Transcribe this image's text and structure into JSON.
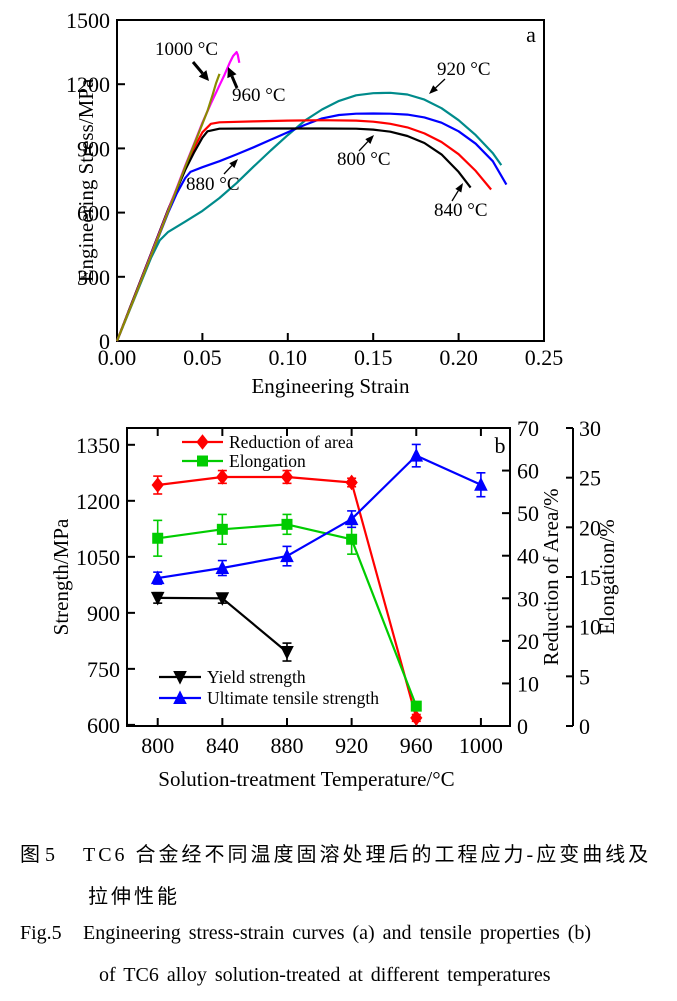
{
  "chart_data": [
    {
      "id": "a",
      "panel_label": "a",
      "type": "line",
      "title": "",
      "xlabel": "Engineering Strain",
      "ylabel": "Engineering Stress/MPa",
      "xlim": [
        0,
        0.25
      ],
      "ylim": [
        0,
        1500
      ],
      "xticks": [
        "0.00",
        "0.05",
        "0.10",
        "0.15",
        "0.20",
        "0.25"
      ],
      "yticks": [
        "0",
        "300",
        "600",
        "900",
        "1200",
        "1500"
      ],
      "grid": false,
      "frame_color": "#000000",
      "series": [
        {
          "name": "920 °C",
          "color": "#008b8b",
          "points": [
            [
              0,
              0
            ],
            [
              0.01,
              195
            ],
            [
              0.02,
              390
            ],
            [
              0.025,
              470
            ],
            [
              0.03,
              510
            ],
            [
              0.04,
              558
            ],
            [
              0.05,
              608
            ],
            [
              0.06,
              668
            ],
            [
              0.07,
              738
            ],
            [
              0.08,
              815
            ],
            [
              0.09,
              890
            ],
            [
              0.1,
              962
            ],
            [
              0.11,
              1030
            ],
            [
              0.12,
              1082
            ],
            [
              0.13,
              1122
            ],
            [
              0.14,
              1148
            ],
            [
              0.15,
              1158
            ],
            [
              0.16,
              1160
            ],
            [
              0.17,
              1152
            ],
            [
              0.18,
              1128
            ],
            [
              0.19,
              1088
            ],
            [
              0.2,
              1032
            ],
            [
              0.21,
              962
            ],
            [
              0.22,
              878
            ],
            [
              0.225,
              822
            ]
          ]
        },
        {
          "name": "880 °C",
          "color": "#0000ff",
          "points": [
            [
              0,
              0
            ],
            [
              0.01,
              200
            ],
            [
              0.02,
              400
            ],
            [
              0.03,
              600
            ],
            [
              0.035,
              690
            ],
            [
              0.04,
              762
            ],
            [
              0.043,
              790
            ],
            [
              0.05,
              812
            ],
            [
              0.06,
              840
            ],
            [
              0.07,
              872
            ],
            [
              0.08,
              905
            ],
            [
              0.09,
              940
            ],
            [
              0.1,
              975
            ],
            [
              0.11,
              1010
            ],
            [
              0.12,
              1040
            ],
            [
              0.13,
              1056
            ],
            [
              0.14,
              1062
            ],
            [
              0.15,
              1063
            ],
            [
              0.16,
              1062
            ],
            [
              0.17,
              1058
            ],
            [
              0.18,
              1045
            ],
            [
              0.19,
              1020
            ],
            [
              0.2,
              980
            ],
            [
              0.21,
              922
            ],
            [
              0.22,
              840
            ],
            [
              0.228,
              731
            ]
          ]
        },
        {
          "name": "840 °C",
          "color": "#ff0000",
          "points": [
            [
              0,
              0
            ],
            [
              0.01,
              205
            ],
            [
              0.02,
              410
            ],
            [
              0.03,
              615
            ],
            [
              0.04,
              810
            ],
            [
              0.045,
              900
            ],
            [
              0.05,
              975
            ],
            [
              0.055,
              1015
            ],
            [
              0.06,
              1022
            ],
            [
              0.08,
              1026
            ],
            [
              0.1,
              1030
            ],
            [
              0.12,
              1032
            ],
            [
              0.14,
              1030
            ],
            [
              0.15,
              1025
            ],
            [
              0.16,
              1015
            ],
            [
              0.17,
              998
            ],
            [
              0.18,
              970
            ],
            [
              0.19,
              930
            ],
            [
              0.2,
              873
            ],
            [
              0.21,
              795
            ],
            [
              0.219,
              708
            ]
          ]
        },
        {
          "name": "800 °C",
          "color": "#000000",
          "points": [
            [
              0,
              0
            ],
            [
              0.01,
              205
            ],
            [
              0.02,
              410
            ],
            [
              0.03,
              615
            ],
            [
              0.04,
              800
            ],
            [
              0.045,
              880
            ],
            [
              0.05,
              950
            ],
            [
              0.053,
              980
            ],
            [
              0.06,
              992
            ],
            [
              0.08,
              993
            ],
            [
              0.1,
              993
            ],
            [
              0.12,
              993
            ],
            [
              0.14,
              992
            ],
            [
              0.15,
              988
            ],
            [
              0.16,
              978
            ],
            [
              0.17,
              958
            ],
            [
              0.18,
              925
            ],
            [
              0.19,
              872
            ],
            [
              0.2,
              790
            ],
            [
              0.207,
              717
            ]
          ]
        },
        {
          "name": "960 °C",
          "color": "#ff00ff",
          "points": [
            [
              0,
              0
            ],
            [
              0.01,
              200
            ],
            [
              0.02,
              405
            ],
            [
              0.03,
              610
            ],
            [
              0.04,
              820
            ],
            [
              0.045,
              920
            ],
            [
              0.05,
              1020
            ],
            [
              0.055,
              1110
            ],
            [
              0.06,
              1195
            ],
            [
              0.063,
              1245
            ],
            [
              0.066,
              1300
            ],
            [
              0.068,
              1332
            ],
            [
              0.07,
              1350
            ],
            [
              0.0707,
              1337
            ],
            [
              0.0716,
              1300
            ]
          ]
        },
        {
          "name": "1000 °C",
          "color": "#8b8b00",
          "points": [
            [
              0,
              0
            ],
            [
              0.01,
              198
            ],
            [
              0.02,
              400
            ],
            [
              0.03,
              605
            ],
            [
              0.04,
              815
            ],
            [
              0.045,
              915
            ],
            [
              0.05,
              1015
            ],
            [
              0.053,
              1075
            ],
            [
              0.056,
              1150
            ],
            [
              0.058,
              1205
            ],
            [
              0.06,
              1248
            ]
          ]
        }
      ],
      "annotations": [
        {
          "text": "1000 °C",
          "x": 155,
          "y": 55,
          "arrow": [
            193,
            62,
            209,
            81
          ],
          "thick": true
        },
        {
          "text": "960 °C",
          "x": 232,
          "y": 101,
          "arrow": [
            237,
            88,
            228,
            67
          ],
          "thick": true
        },
        {
          "text": "880 °C",
          "x": 186,
          "y": 190,
          "arrow": [
            224,
            174,
            238,
            159
          ],
          "thick": false
        },
        {
          "text": "920 °C",
          "x": 437,
          "y": 75,
          "arrow": [
            445,
            79,
            429,
            94
          ],
          "thick": false
        },
        {
          "text": "800 °C",
          "x": 337,
          "y": 165,
          "arrow": [
            359,
            151,
            374,
            135
          ],
          "thick": false
        },
        {
          "text": "840 °C",
          "x": 434,
          "y": 216,
          "arrow": [
            452,
            201,
            463,
            183
          ],
          "thick": false
        }
      ]
    },
    {
      "id": "b",
      "panel_label": "b",
      "type": "line",
      "title": "",
      "xlabel": "Solution-treatment Temperature/°C",
      "ylabel_left": "Strength/MPa",
      "ylabel_right1": "Reduction of Area/%",
      "ylabel_right2": "Elongation/%",
      "xlim": [
        781,
        1018
      ],
      "ylim_left": [
        597,
        1395
      ],
      "ylim_right1": [
        0,
        70
      ],
      "ylim_right2": [
        0,
        30
      ],
      "xticks": [
        800,
        840,
        880,
        920,
        960,
        1000
      ],
      "yticks_left": [
        600,
        750,
        900,
        1050,
        1200,
        1350
      ],
      "yticks_right1": [
        0,
        10,
        20,
        30,
        40,
        50,
        60,
        70
      ],
      "yticks_right2": [
        0,
        5,
        10,
        15,
        20,
        25,
        30
      ],
      "grid": false,
      "series": [
        {
          "name": "Reduction of area",
          "axis": "right1",
          "color": "#ff0000",
          "marker": "diamond",
          "x": [
            800,
            840,
            880,
            920,
            960
          ],
          "y": [
            56.6,
            58.5,
            58.5,
            57.2,
            1.9
          ],
          "err": [
            2.1,
            1.5,
            1.5,
            1.0,
            0.8
          ]
        },
        {
          "name": "Elongation",
          "axis": "right2",
          "color": "#00cc00",
          "marker": "square",
          "x": [
            800,
            840,
            880,
            920,
            960
          ],
          "y": [
            18.9,
            19.8,
            20.3,
            18.8,
            2.0
          ],
          "err": [
            1.8,
            1.5,
            1.0,
            1.5,
            0.4
          ]
        },
        {
          "name": "Yield strength",
          "axis": "left",
          "color": "#000000",
          "marker": "triangle-down",
          "x": [
            800,
            840,
            880
          ],
          "y": [
            940,
            939,
            795
          ],
          "err": [
            14,
            13,
            24
          ]
        },
        {
          "name": "Ultimate tensile strength",
          "axis": "left",
          "color": "#0000ff",
          "marker": "triangle-up",
          "x": [
            800,
            840,
            880,
            920,
            960,
            1000
          ],
          "y": [
            993,
            1020,
            1052,
            1151,
            1321,
            1243
          ],
          "err": [
            16,
            20,
            26,
            22,
            30,
            32
          ]
        }
      ],
      "legend_top_entries": [
        0,
        1
      ],
      "legend_bottom_entries": [
        2,
        3
      ]
    }
  ],
  "caption": {
    "zh_label": "图 5",
    "zh_line1": "TC6 合金经不同温度固溶处理后的工程应力-应变曲线及",
    "zh_line2": "拉伸性能",
    "en_label": "Fig.5",
    "en_line1": "Engineering stress-strain curves (a) and tensile properties (b)",
    "en_line2": "of TC6 alloy solution-treated at different temperatures"
  }
}
